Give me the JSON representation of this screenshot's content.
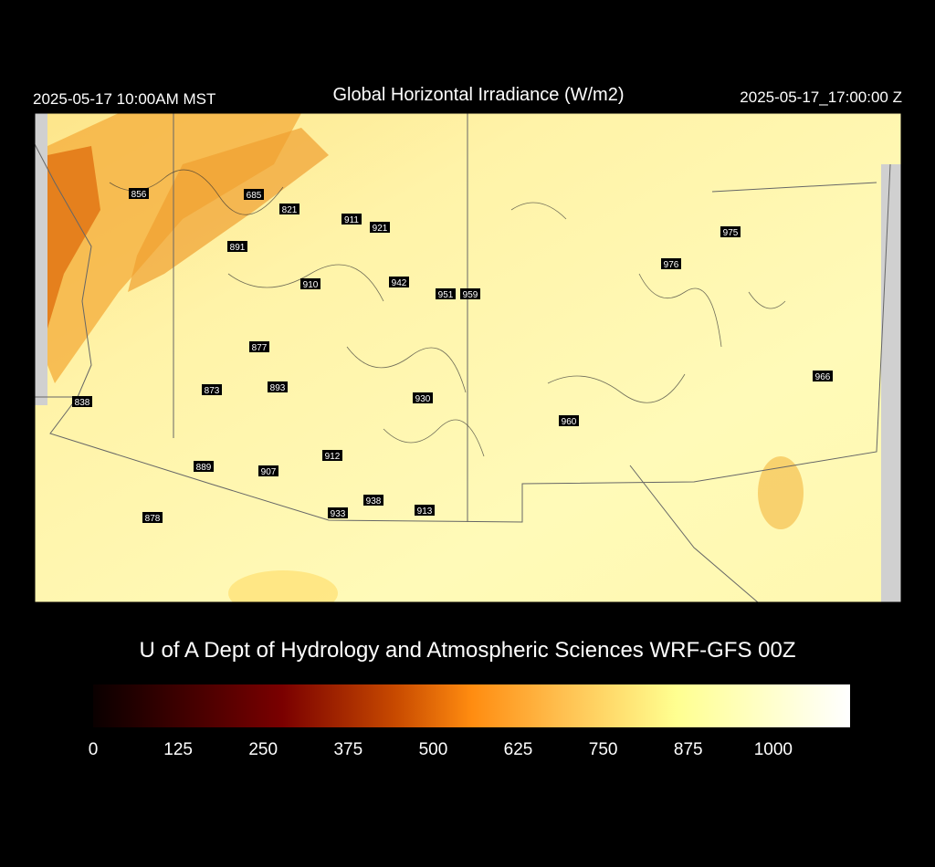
{
  "header": {
    "left": "2025-05-17 10:00AM MST",
    "title": "Global Horizontal Irradiance (W/m2)",
    "right": "2025-05-17_17:00:00 Z"
  },
  "map": {
    "labels": [
      856,
      685,
      821,
      911,
      921,
      891,
      910,
      942,
      951,
      959,
      877,
      873,
      893,
      838,
      930,
      960,
      912,
      889,
      907,
      938,
      933,
      913,
      878,
      975,
      976,
      966
    ]
  },
  "credit": "U of A Dept of Hydrology and Atmospheric Sciences WRF-GFS 00Z",
  "colorbar": {
    "lim": [
      0,
      1113
    ],
    "ticks": [
      0,
      125,
      250,
      375,
      500,
      625,
      750,
      875,
      1000
    ]
  }
}
